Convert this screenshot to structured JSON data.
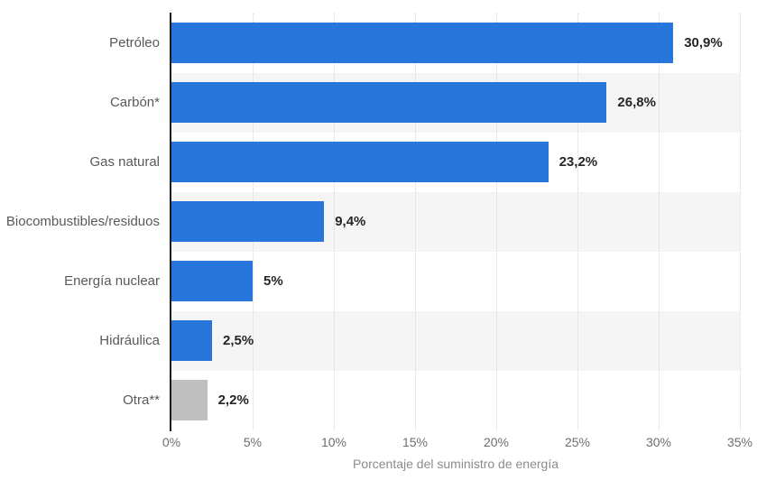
{
  "chart_data": {
    "type": "bar",
    "orientation": "horizontal",
    "categories": [
      "Petróleo",
      "Carbón*",
      "Gas natural",
      "Biocombustibles/residuos",
      "Energía nuclear",
      "Hidráulica",
      "Otra**"
    ],
    "values": [
      30.9,
      26.8,
      23.2,
      9.4,
      5,
      2.5,
      2.2
    ],
    "value_labels": [
      "30,9%",
      "26,8%",
      "23,2%",
      "9,4%",
      "5%",
      "2,5%",
      "2,2%"
    ],
    "bar_colors": [
      "#2876db",
      "#2876db",
      "#2876db",
      "#2876db",
      "#2876db",
      "#2876db",
      "#bfbfbf"
    ],
    "xlabel": "Porcentaje del suministro de energía",
    "x_ticks": [
      "0%",
      "5%",
      "10%",
      "15%",
      "20%",
      "25%",
      "30%",
      "35%"
    ],
    "xlim": [
      0,
      35
    ],
    "grid": true,
    "gridline_step_pct": 5,
    "legend": false,
    "striped_rows": [
      1,
      3,
      5
    ]
  },
  "colors": {
    "bar_blue": "#2876db",
    "bar_gray": "#bfbfbf",
    "row_stripe": "#f5f5f5",
    "gridline": "#d6d6d6",
    "axis_line": "#1a1a1a",
    "category_label": "#595959",
    "value_label": "#262626",
    "tick_label": "#6e6e6e",
    "axis_title": "#8c8c8c"
  }
}
